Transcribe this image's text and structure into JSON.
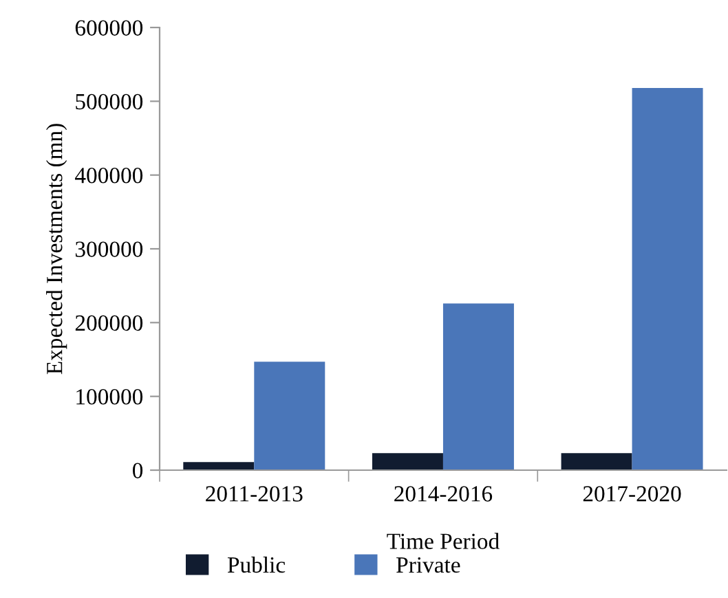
{
  "chart_data": {
    "type": "bar",
    "categories": [
      "2011-2013",
      "2014-2016",
      "2017-2020"
    ],
    "series": [
      {
        "name": "Public",
        "color": "#111c30",
        "values": [
          11000,
          23000,
          23000
        ]
      },
      {
        "name": "Private",
        "color": "#4a76b9",
        "values": [
          147000,
          226000,
          518000
        ]
      }
    ],
    "xlabel": "Time Period",
    "ylabel": "Expected Investments (mn)",
    "ylim": [
      0,
      600000
    ],
    "yticks": [
      0,
      100000,
      200000,
      300000,
      400000,
      500000,
      600000
    ],
    "grid": false,
    "legend": "bottom"
  }
}
